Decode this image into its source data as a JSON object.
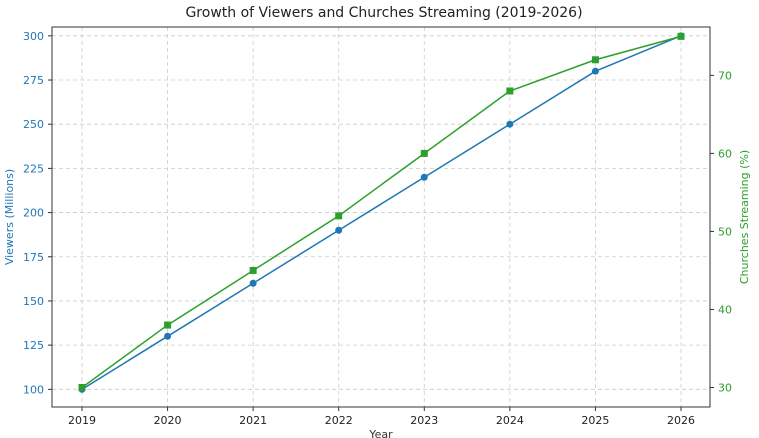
{
  "chart_data": {
    "type": "line",
    "title": "Growth of Viewers and Churches Streaming (2019-2026)",
    "xlabel": "Year",
    "x": [
      "2019",
      "2020",
      "2021",
      "2022",
      "2023",
      "2024",
      "2025",
      "2026"
    ],
    "grid": true,
    "series": [
      {
        "axis": "left",
        "values": [
          100,
          130,
          160,
          190,
          220,
          250,
          280,
          300
        ],
        "color": "#1f77b4",
        "marker": "circle"
      },
      {
        "axis": "right",
        "values": [
          30,
          38,
          45,
          52,
          60,
          68,
          72,
          75
        ],
        "color": "#2ca02c",
        "marker": "square"
      }
    ],
    "y_left": {
      "label": "Viewers (Millions)",
      "ylim": [
        90,
        305
      ],
      "ticks": [
        "100",
        "125",
        "150",
        "175",
        "200",
        "225",
        "250",
        "275",
        "300"
      ],
      "color": "#1f77b4"
    },
    "y_right": {
      "label": "Churches Streaming (%)",
      "ylim": [
        27.5,
        76.2
      ],
      "ticks": [
        "30",
        "40",
        "50",
        "60",
        "70"
      ],
      "color": "#2ca02c"
    }
  }
}
